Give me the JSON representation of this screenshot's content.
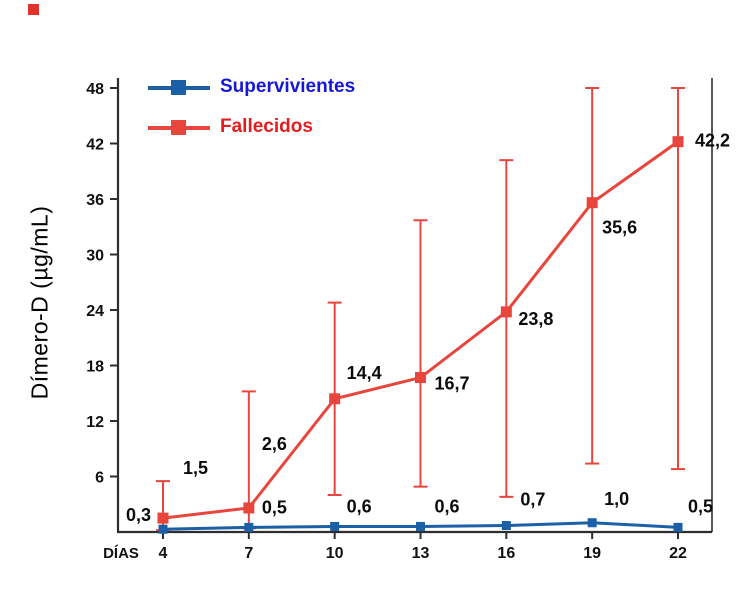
{
  "chart_data": {
    "type": "line",
    "x": [
      4,
      7,
      10,
      13,
      16,
      19,
      22
    ],
    "xlabel": "DÍAS",
    "ylabel": "Dímero-D (µg/mL)",
    "ylim": [
      0,
      48
    ],
    "yticks": [
      6,
      12,
      18,
      24,
      30,
      36,
      42,
      48
    ],
    "legend_position": "top-left",
    "grid": false,
    "series": [
      {
        "name": "Supervivientes",
        "color": "#1b5fa6",
        "label_color": "#1717d6",
        "values": [
          0.3,
          0.5,
          0.6,
          0.6,
          0.7,
          1.0,
          0.5
        ],
        "point_labels": [
          "0,3",
          "0,5",
          "0,6",
          "0,6",
          "0,7",
          "1,0",
          "0,5"
        ]
      },
      {
        "name": "Fallecidos",
        "color": "#e8463c",
        "label_color": "#e31d1d",
        "values": [
          1.5,
          2.6,
          14.4,
          16.7,
          23.8,
          35.6,
          42.2
        ],
        "point_labels": [
          "1,5",
          "2,6",
          "14,4",
          "16,7",
          "23,8",
          "35,6",
          "42,2"
        ],
        "error_upper": [
          5.5,
          15.2,
          24.8,
          33.7,
          40.2,
          48,
          48
        ],
        "error_lower": [
          0.2,
          0.4,
          4.0,
          4.9,
          3.8,
          7.4,
          6.8
        ]
      }
    ]
  },
  "colors": {
    "axis": "#2e2e2e",
    "tick_label": "#111111",
    "value_label": "#0b0b0b",
    "background": "#ffffff",
    "corner_mark": "#e03228"
  }
}
